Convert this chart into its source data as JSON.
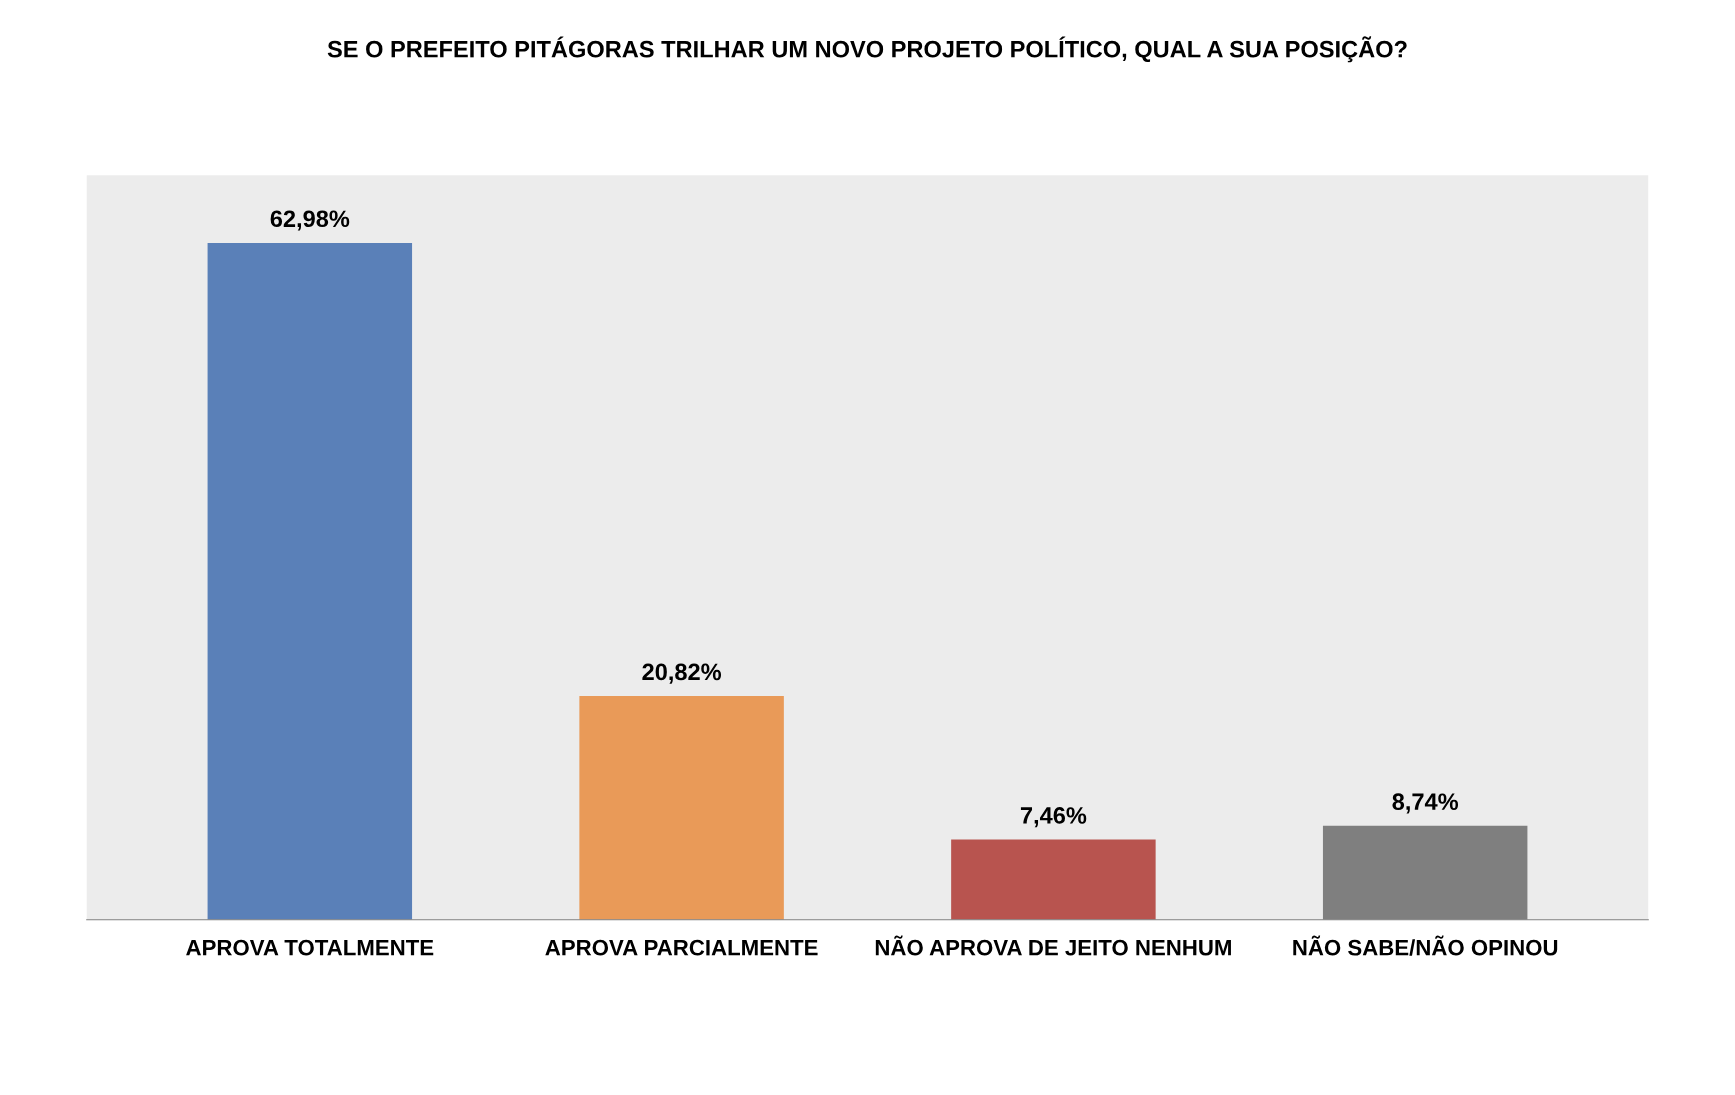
{
  "chart_data": {
    "type": "bar",
    "title": "SE O PREFEITO PITÁGORAS TRILHAR UM NOVO PROJETO POLÍTICO, QUAL A SUA POSIÇÃO?",
    "categories": [
      "APROVA TOTALMENTE",
      "APROVA PARCIALMENTE",
      "NÃO APROVA DE JEITO NENHUM",
      "NÃO SABE/NÃO OPINOU"
    ],
    "values": [
      62.98,
      20.82,
      7.46,
      8.74
    ],
    "value_labels": [
      "62,98%",
      "20,82%",
      "7,46%",
      "8,74%"
    ],
    "colors": [
      "#5a80b8",
      "#e99a58",
      "#b8544f",
      "#7f7f7f"
    ],
    "tick_labels": "x"
  }
}
